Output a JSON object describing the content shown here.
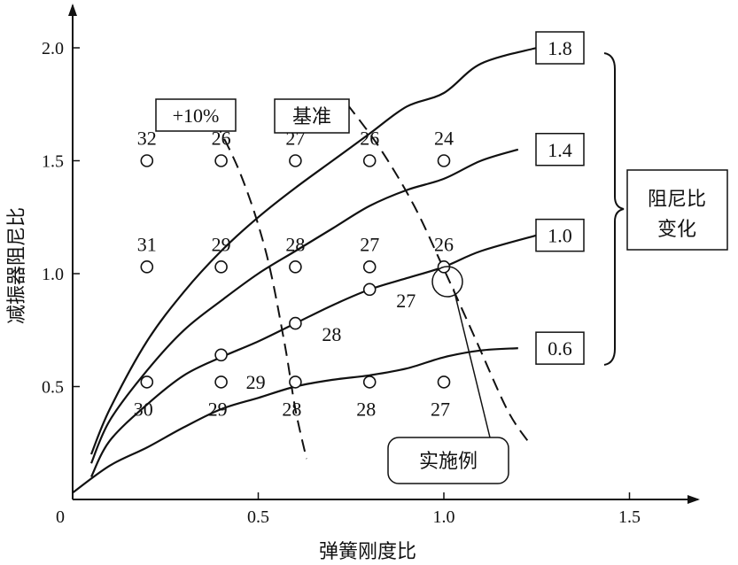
{
  "chart_data": {
    "type": "line",
    "xlabel": "弹簧刚度比",
    "ylabel": "减振器阻尼比",
    "xlim": [
      0,
      1.7
    ],
    "ylim": [
      0,
      2.25
    ],
    "xticks": [
      "0",
      "0.5",
      "1.0",
      "1.5"
    ],
    "yticks": [
      "0.5",
      "1.0",
      "1.5",
      "2.0"
    ],
    "xtick_values": [
      0,
      0.5,
      1.0,
      1.5
    ],
    "ytick_values": [
      0.5,
      1.0,
      1.5,
      2.0
    ],
    "series": [
      {
        "name": "1.8",
        "points": [
          [
            0.05,
            0.2
          ],
          [
            0.1,
            0.4
          ],
          [
            0.2,
            0.7
          ],
          [
            0.3,
            0.92
          ],
          [
            0.4,
            1.1
          ],
          [
            0.5,
            1.25
          ],
          [
            0.6,
            1.38
          ],
          [
            0.7,
            1.5
          ],
          [
            0.8,
            1.62
          ],
          [
            0.9,
            1.74
          ],
          [
            1.0,
            1.8
          ],
          [
            1.1,
            1.93
          ],
          [
            1.25,
            2.0
          ]
        ]
      },
      {
        "name": "1.4",
        "points": [
          [
            0.05,
            0.16
          ],
          [
            0.1,
            0.35
          ],
          [
            0.2,
            0.57
          ],
          [
            0.3,
            0.75
          ],
          [
            0.4,
            0.88
          ],
          [
            0.5,
            1.0
          ],
          [
            0.6,
            1.1
          ],
          [
            0.7,
            1.2
          ],
          [
            0.8,
            1.3
          ],
          [
            0.9,
            1.37
          ],
          [
            1.0,
            1.42
          ],
          [
            1.1,
            1.5
          ],
          [
            1.2,
            1.55
          ]
        ]
      },
      {
        "name": "1.0",
        "points": [
          [
            0.05,
            0.1
          ],
          [
            0.1,
            0.26
          ],
          [
            0.2,
            0.42
          ],
          [
            0.3,
            0.55
          ],
          [
            0.4,
            0.63
          ],
          [
            0.5,
            0.7
          ],
          [
            0.6,
            0.78
          ],
          [
            0.7,
            0.86
          ],
          [
            0.8,
            0.93
          ],
          [
            0.9,
            0.98
          ],
          [
            1.0,
            1.03
          ],
          [
            1.1,
            1.1
          ],
          [
            1.25,
            1.17
          ]
        ]
      },
      {
        "name": "0.6",
        "points": [
          [
            0.0,
            0.03
          ],
          [
            0.1,
            0.15
          ],
          [
            0.2,
            0.23
          ],
          [
            0.3,
            0.32
          ],
          [
            0.4,
            0.4
          ],
          [
            0.5,
            0.45
          ],
          [
            0.6,
            0.5
          ],
          [
            0.7,
            0.53
          ],
          [
            0.8,
            0.55
          ],
          [
            0.9,
            0.58
          ],
          [
            1.0,
            0.63
          ],
          [
            1.1,
            0.66
          ],
          [
            1.2,
            0.67
          ]
        ]
      }
    ],
    "dashed_lines": [
      {
        "name": "+10%",
        "points": [
          [
            0.36,
            1.75
          ],
          [
            0.45,
            1.45
          ],
          [
            0.52,
            1.1
          ],
          [
            0.57,
            0.7
          ],
          [
            0.6,
            0.4
          ],
          [
            0.63,
            0.18
          ]
        ]
      },
      {
        "name": "基准",
        "points": [
          [
            0.74,
            1.75
          ],
          [
            0.83,
            1.55
          ],
          [
            0.92,
            1.3
          ],
          [
            1.0,
            1.02
          ],
          [
            1.08,
            0.73
          ],
          [
            1.17,
            0.4
          ],
          [
            1.23,
            0.25
          ]
        ]
      }
    ],
    "points": [
      {
        "x": 0.2,
        "y": 1.5,
        "label": "32"
      },
      {
        "x": 0.4,
        "y": 1.5,
        "label": "26"
      },
      {
        "x": 0.6,
        "y": 1.5,
        "label": "27"
      },
      {
        "x": 0.8,
        "y": 1.5,
        "label": "26"
      },
      {
        "x": 1.0,
        "y": 1.5,
        "label": "24"
      },
      {
        "x": 0.2,
        "y": 1.03,
        "label": "31"
      },
      {
        "x": 0.4,
        "y": 1.03,
        "label": "29"
      },
      {
        "x": 0.6,
        "y": 1.03,
        "label": "28"
      },
      {
        "x": 0.8,
        "y": 1.03,
        "label": "27"
      },
      {
        "x": 1.0,
        "y": 1.03,
        "label": "26"
      },
      {
        "x": 0.4,
        "y": 0.64,
        "label": "29"
      },
      {
        "x": 0.6,
        "y": 0.78,
        "label": "28"
      },
      {
        "x": 0.8,
        "y": 0.93,
        "label": "27"
      },
      {
        "x": 0.2,
        "y": 0.52,
        "label": "30"
      },
      {
        "x": 0.4,
        "y": 0.52,
        "label": "29"
      },
      {
        "x": 0.6,
        "y": 0.52,
        "label": "28"
      },
      {
        "x": 0.8,
        "y": 0.52,
        "label": "28"
      },
      {
        "x": 1.0,
        "y": 0.52,
        "label": "27"
      }
    ],
    "annotations": {
      "dash_label_plus": "+10%",
      "dash_label_base": "基准",
      "brace_label_line1": "阻尼比",
      "brace_label_line2": "变化",
      "example_label": "实施例"
    },
    "highlighted_point": {
      "x": 1.0,
      "y": 1.03
    }
  }
}
